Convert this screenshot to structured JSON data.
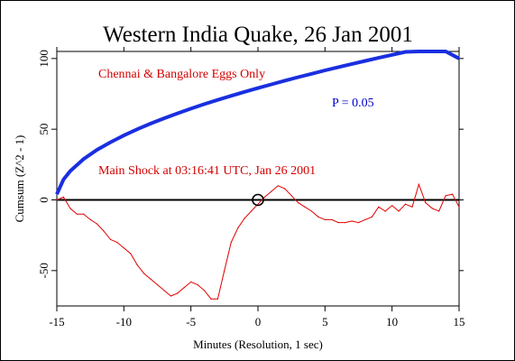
{
  "chart_data": {
    "type": "line",
    "title": "Western India Quake, 26 Jan 2001",
    "xlabel": "Minutes (Resolution, 1 sec)",
    "ylabel": "Cumsum (Z^2 - 1)",
    "xlim": [
      -15,
      15
    ],
    "ylim": [
      -75,
      105
    ],
    "xticks": [
      -15,
      -10,
      -5,
      0,
      5,
      10,
      15
    ],
    "xtick_labels": [
      "-15",
      "-10",
      "-5",
      "0",
      "5",
      "10",
      "15"
    ],
    "yticks": [
      -50,
      0,
      50,
      100
    ],
    "ytick_labels": [
      "-50",
      "0",
      "50",
      "100"
    ],
    "grid": false,
    "annotations": {
      "subset": "Chennai & Bangalore Eggs Only",
      "probability": "P = 0.05",
      "event": "Main Shock at 03:16:41 UTC, Jan 26 2001"
    },
    "marker": {
      "x": 0,
      "y": 0
    },
    "colors": {
      "cumsum": "#e00000",
      "envelope": "#1a2fe0",
      "annotation_red": "#d40000",
      "annotation_blue": "#0000cc"
    },
    "series": [
      {
        "role": "cumsum",
        "x": [
          -15,
          -14.5,
          -14,
          -13.5,
          -13,
          -12.5,
          -12,
          -11.5,
          -11,
          -10.5,
          -10,
          -9.5,
          -9,
          -8.5,
          -8,
          -7.5,
          -7,
          -6.5,
          -6,
          -5.5,
          -5,
          -4.5,
          -4,
          -3.5,
          -3,
          -2.5,
          -2,
          -1.5,
          -1,
          -0.5,
          0,
          0.5,
          1,
          1.5,
          2,
          2.5,
          3,
          3.5,
          4,
          4.5,
          5,
          5.5,
          6,
          6.5,
          7,
          7.5,
          8,
          8.5,
          9,
          9.5,
          10,
          10.5,
          11,
          11.5,
          12,
          12.5,
          13,
          13.5,
          14,
          14.5,
          15
        ],
        "y": [
          0,
          2,
          -6,
          -10,
          -10,
          -14,
          -17,
          -22,
          -28,
          -30,
          -34,
          -38,
          -46,
          -52,
          -56,
          -60,
          -64,
          -68,
          -66,
          -62,
          -58,
          -60,
          -64,
          -70,
          -70,
          -50,
          -30,
          -20,
          -13,
          -8,
          -3,
          2,
          6,
          10,
          8,
          3,
          -2,
          -5,
          -8,
          -12,
          -14,
          -14,
          -16,
          -16,
          -15,
          -16,
          -14,
          -12,
          -5,
          -8,
          -4,
          -8,
          -3,
          -5,
          11,
          -2,
          -6,
          -8,
          3,
          4,
          -5
        ]
      },
      {
        "role": "envelope",
        "x": [
          -15,
          -14.5,
          -14,
          -13,
          -12,
          -11,
          -10,
          -9,
          -8,
          -7,
          -6,
          -5,
          -4,
          -3,
          -2,
          -1,
          0,
          1,
          2,
          3,
          4,
          5,
          6,
          7,
          8,
          9,
          10,
          11,
          12,
          13,
          14,
          15
        ],
        "y": [
          4,
          14.4,
          20.4,
          28.9,
          35.4,
          40.8,
          45.6,
          50,
          54,
          57.7,
          61.2,
          64.5,
          67.7,
          70.7,
          73.6,
          76.4,
          79.1,
          81.7,
          84.3,
          86.8,
          89.2,
          91.6,
          93.9,
          96.1,
          98.3,
          100.5,
          102.6,
          104.7,
          106.7,
          108.7,
          110.7,
          100
        ]
      }
    ]
  }
}
